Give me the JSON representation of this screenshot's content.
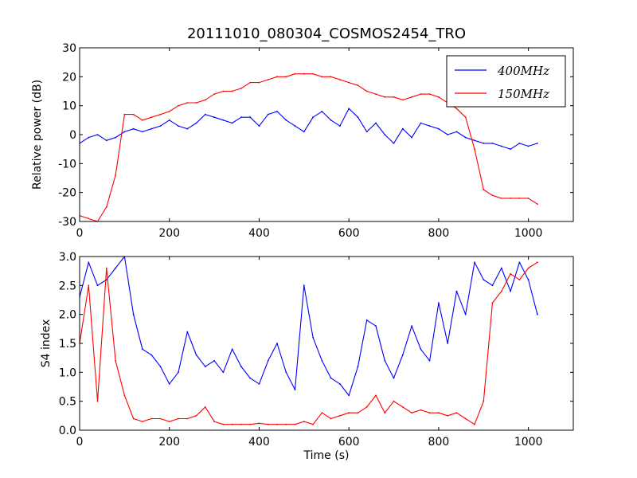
{
  "title": "20111010_080304_COSMOS2454_TRO",
  "colors": {
    "400MHz": "#0000ff",
    "150MHz": "#ff0000",
    "axes": "#000000",
    "background": "#ffffff"
  },
  "legend": {
    "location": "upper right",
    "entries": [
      "400MHz",
      "150MHz"
    ]
  },
  "chart_data": [
    {
      "type": "line",
      "title": "20111010_080304_COSMOS2454_TRO",
      "xlabel": "",
      "ylabel": "Relative power (dB)",
      "xlim": [
        0,
        1100
      ],
      "ylim": [
        -30,
        30
      ],
      "xticks": [
        0,
        200,
        400,
        600,
        800,
        1000
      ],
      "yticks": [
        -30,
        -20,
        -10,
        0,
        10,
        20,
        30
      ],
      "grid": false,
      "legend_position": "top-right",
      "series": [
        {
          "name": "400MHz",
          "color": "#0000ff",
          "x": [
            0,
            20,
            40,
            60,
            80,
            100,
            120,
            140,
            160,
            180,
            200,
            220,
            240,
            260,
            280,
            300,
            320,
            340,
            360,
            380,
            400,
            420,
            440,
            460,
            480,
            500,
            520,
            540,
            560,
            580,
            600,
            620,
            640,
            660,
            680,
            700,
            720,
            740,
            760,
            780,
            800,
            820,
            840,
            860,
            880,
            900,
            920,
            940,
            960,
            980,
            1000,
            1020
          ],
          "y": [
            -3,
            -1,
            0,
            -2,
            -1,
            1,
            2,
            1,
            2,
            3,
            5,
            3,
            2,
            4,
            7,
            6,
            5,
            4,
            6,
            6,
            3,
            7,
            8,
            5,
            3,
            1,
            6,
            8,
            5,
            3,
            9,
            6,
            1,
            4,
            0,
            -3,
            2,
            -1,
            4,
            3,
            2,
            0,
            1,
            -1,
            -2,
            -3,
            -3,
            -4,
            -5,
            -3,
            -4,
            -3
          ]
        },
        {
          "name": "150MHz",
          "color": "#ff0000",
          "x": [
            0,
            20,
            40,
            60,
            80,
            100,
            120,
            140,
            160,
            180,
            200,
            220,
            240,
            260,
            280,
            300,
            320,
            340,
            360,
            380,
            400,
            420,
            440,
            460,
            480,
            500,
            520,
            540,
            560,
            580,
            600,
            620,
            640,
            660,
            680,
            700,
            720,
            740,
            760,
            780,
            800,
            820,
            840,
            860,
            880,
            900,
            920,
            940,
            960,
            980,
            1000,
            1020
          ],
          "y": [
            -28,
            -29,
            -30,
            -25,
            -14,
            7,
            7,
            5,
            6,
            7,
            8,
            10,
            11,
            11,
            12,
            14,
            15,
            15,
            16,
            18,
            18,
            19,
            20,
            20,
            21,
            21,
            21,
            20,
            20,
            19,
            18,
            17,
            15,
            14,
            13,
            13,
            12,
            13,
            14,
            14,
            13,
            11,
            9,
            6,
            -5,
            -19,
            -21,
            -22,
            -22,
            -22,
            -22,
            -24
          ]
        }
      ]
    },
    {
      "type": "line",
      "title": "",
      "xlabel": "Time (s)",
      "ylabel": "S4 index",
      "xlim": [
        0,
        1100
      ],
      "ylim": [
        0,
        3
      ],
      "xticks": [
        0,
        200,
        400,
        600,
        800,
        1000
      ],
      "yticks": [
        0.0,
        0.5,
        1.0,
        1.5,
        2.0,
        2.5,
        3.0
      ],
      "grid": false,
      "series": [
        {
          "name": "400MHz",
          "color": "#0000ff",
          "x": [
            0,
            20,
            40,
            60,
            80,
            100,
            120,
            140,
            160,
            180,
            200,
            220,
            240,
            260,
            280,
            300,
            320,
            340,
            360,
            380,
            400,
            420,
            440,
            460,
            480,
            500,
            520,
            540,
            560,
            580,
            600,
            620,
            640,
            660,
            680,
            700,
            720,
            740,
            760,
            780,
            800,
            820,
            840,
            860,
            880,
            900,
            920,
            940,
            960,
            980,
            1000,
            1020
          ],
          "y": [
            2.3,
            2.9,
            2.5,
            2.6,
            2.8,
            3.0,
            2.0,
            1.4,
            1.3,
            1.1,
            0.8,
            1.0,
            1.7,
            1.3,
            1.1,
            1.2,
            1.0,
            1.4,
            1.1,
            0.9,
            0.8,
            1.2,
            1.5,
            1.0,
            0.7,
            2.5,
            1.6,
            1.2,
            0.9,
            0.8,
            0.6,
            1.1,
            1.9,
            1.8,
            1.2,
            0.9,
            1.3,
            1.8,
            1.4,
            1.2,
            2.2,
            1.5,
            2.4,
            2.0,
            2.9,
            2.6,
            2.5,
            2.8,
            2.4,
            2.9,
            2.6,
            2.0
          ]
        },
        {
          "name": "150MHz",
          "color": "#ff0000",
          "x": [
            0,
            20,
            40,
            60,
            80,
            100,
            120,
            140,
            160,
            180,
            200,
            220,
            240,
            260,
            280,
            300,
            320,
            340,
            360,
            380,
            400,
            420,
            440,
            460,
            480,
            500,
            520,
            540,
            560,
            580,
            600,
            620,
            640,
            660,
            680,
            700,
            720,
            740,
            760,
            780,
            800,
            820,
            840,
            860,
            880,
            900,
            920,
            940,
            960,
            980,
            1000,
            1020
          ],
          "y": [
            1.5,
            2.5,
            0.5,
            2.8,
            1.2,
            0.6,
            0.2,
            0.15,
            0.2,
            0.2,
            0.15,
            0.2,
            0.2,
            0.25,
            0.4,
            0.15,
            0.1,
            0.1,
            0.1,
            0.1,
            0.12,
            0.1,
            0.1,
            0.1,
            0.1,
            0.15,
            0.1,
            0.3,
            0.2,
            0.25,
            0.3,
            0.3,
            0.4,
            0.6,
            0.3,
            0.5,
            0.4,
            0.3,
            0.35,
            0.3,
            0.3,
            0.25,
            0.3,
            0.2,
            0.1,
            0.5,
            2.2,
            2.4,
            2.7,
            2.6,
            2.8,
            2.9
          ]
        }
      ]
    }
  ]
}
